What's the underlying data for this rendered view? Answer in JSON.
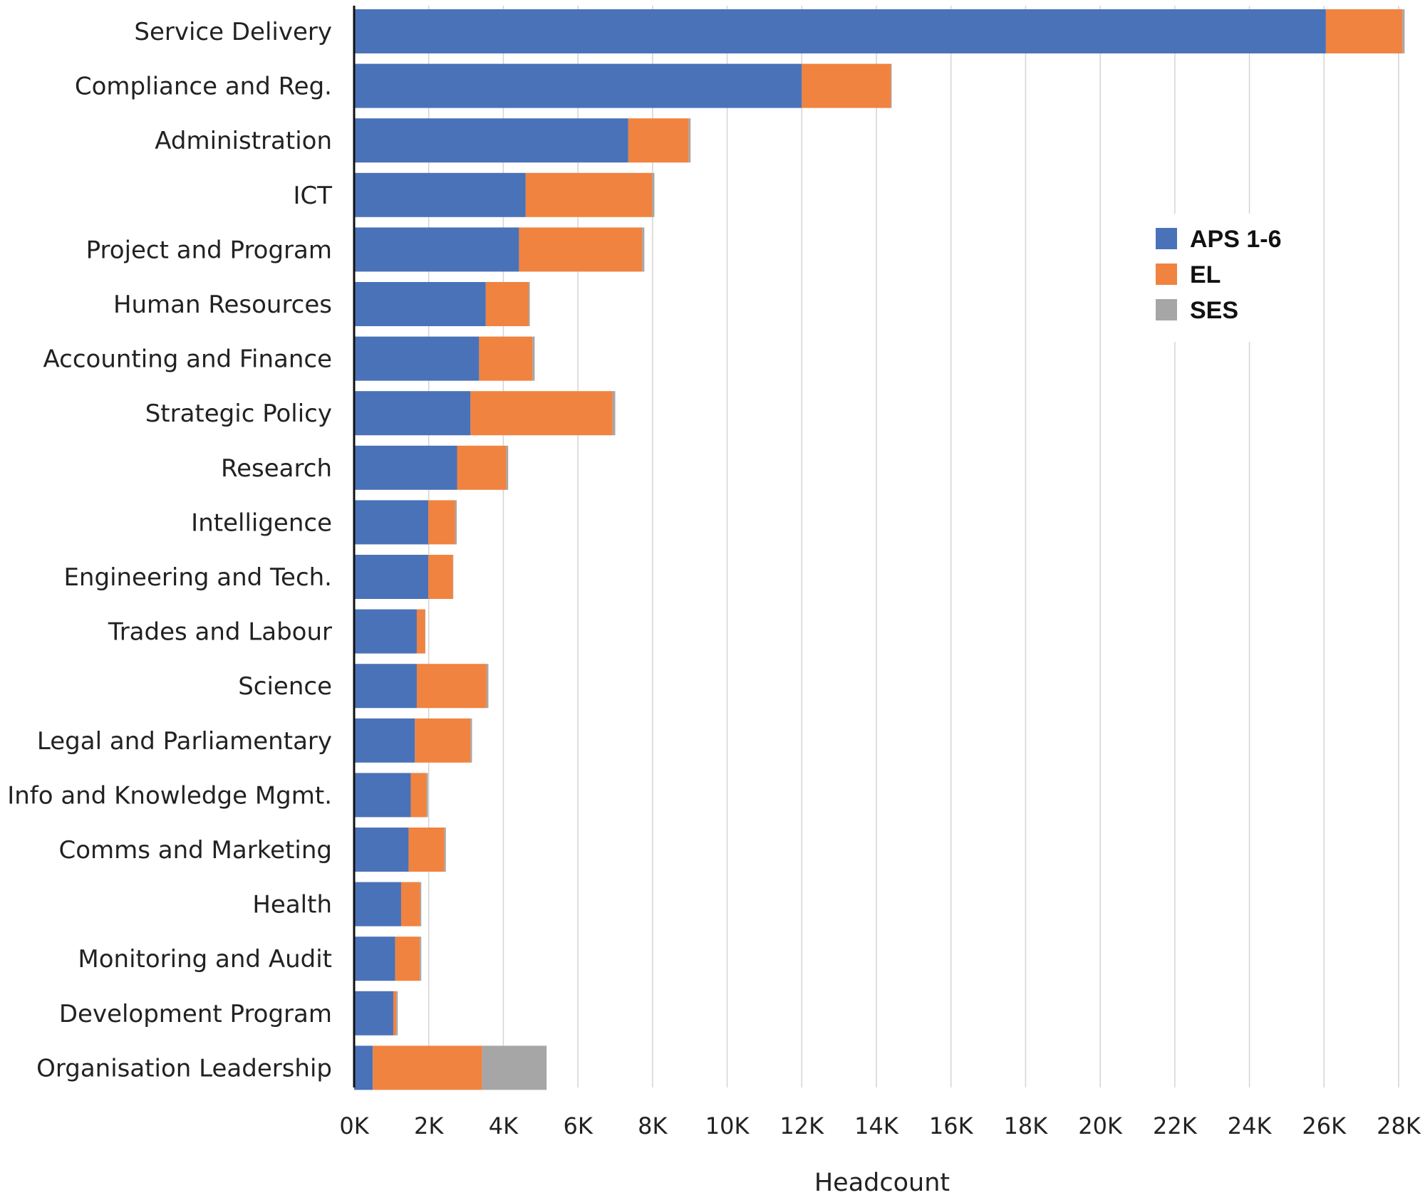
{
  "chart_data": {
    "type": "bar",
    "orientation": "horizontal",
    "stacked": true,
    "title": "",
    "xlabel": "Headcount",
    "ylabel": "",
    "xlim": [
      0,
      28000
    ],
    "x_tick_values": [
      0,
      2000,
      4000,
      6000,
      8000,
      10000,
      12000,
      14000,
      16000,
      18000,
      20000,
      22000,
      24000,
      26000,
      28000
    ],
    "x_tick_labels": [
      "0K",
      "2K",
      "4K",
      "6K",
      "8K",
      "10K",
      "12K",
      "14K",
      "16K",
      "18K",
      "20K",
      "22K",
      "24K",
      "26K",
      "28K"
    ],
    "grid": "vertical",
    "legend_position": "top-right",
    "categories": [
      "Service Delivery",
      "Compliance and Reg.",
      "Administration",
      "ICT",
      "Project and Program",
      "Human Resources",
      "Accounting and Finance",
      "Strategic Policy",
      "Research",
      "Intelligence",
      "Engineering and Tech.",
      "Trades and Labour",
      "Science",
      "Legal and Parliamentary",
      "Info and Knowledge Mgmt.",
      "Comms and Marketing",
      "Health",
      "Monitoring and Audit",
      "Development Program",
      "Organisation Leadership"
    ],
    "series": [
      {
        "name": "APS 1-6",
        "color": "#4a72b8",
        "values": [
          26050,
          12000,
          7350,
          4600,
          4420,
          3530,
          3350,
          3120,
          2760,
          1990,
          1990,
          1680,
          1680,
          1630,
          1520,
          1460,
          1260,
          1100,
          1050,
          500
        ]
      },
      {
        "name": "EL",
        "color": "#f08340",
        "values": [
          2050,
          2390,
          1620,
          3390,
          3300,
          1150,
          1430,
          3810,
          1320,
          720,
          660,
          220,
          1870,
          1490,
          420,
          960,
          510,
          660,
          80,
          2930
        ]
      },
      {
        "name": "SES",
        "color": "#a6a6a6",
        "values": [
          60,
          20,
          50,
          60,
          60,
          30,
          60,
          70,
          50,
          40,
          10,
          10,
          50,
          40,
          40,
          40,
          30,
          40,
          40,
          1730
        ]
      }
    ]
  }
}
